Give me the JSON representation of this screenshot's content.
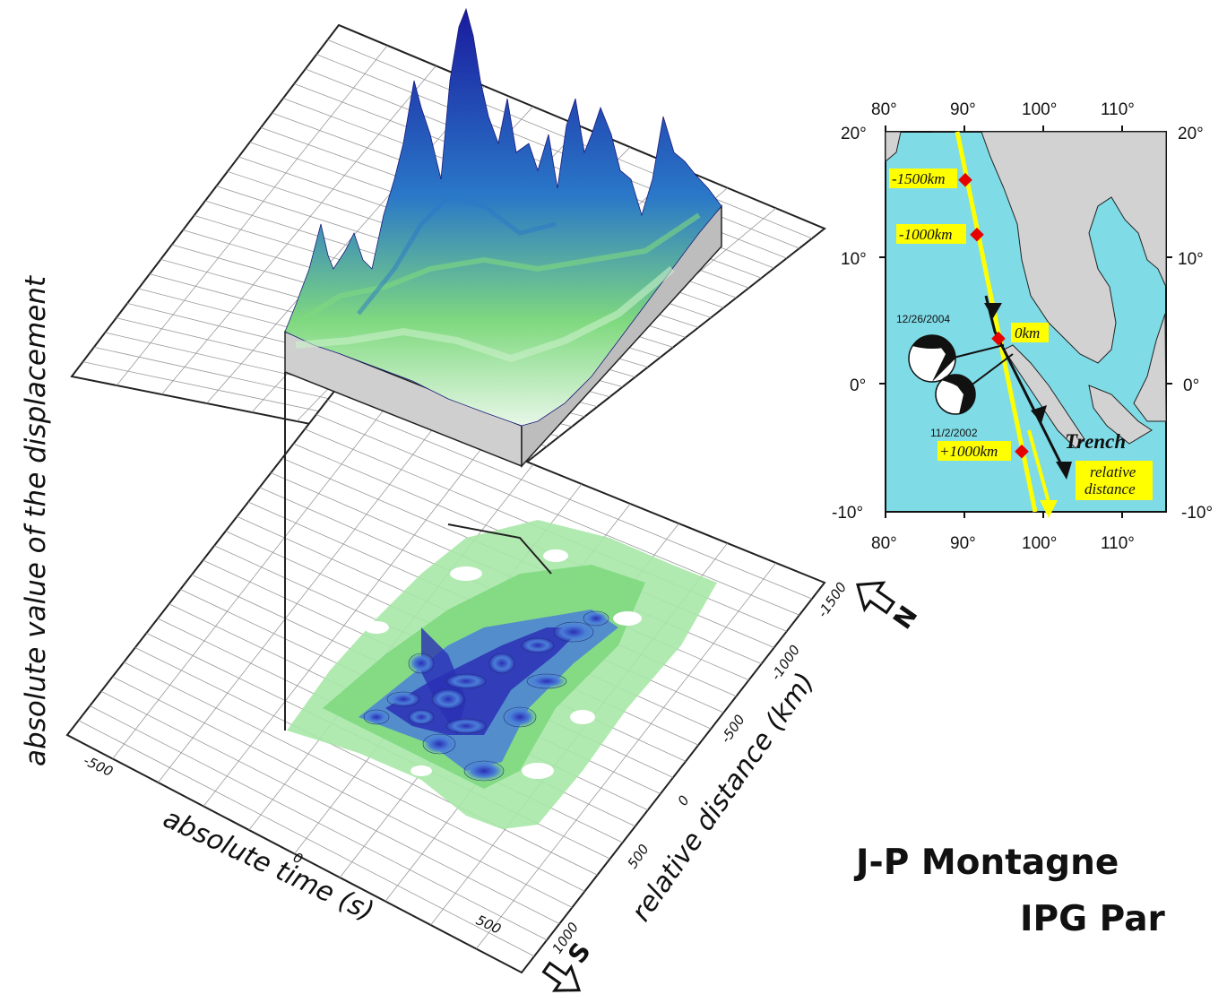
{
  "figure": {
    "ylabel": "absolute value of the displacement",
    "xlabel": "absolute time (s)",
    "distance_label": "relative distance (km)",
    "time_ticks": [
      "-500",
      "0",
      "500"
    ],
    "distance_ticks": [
      "-1500",
      "-1000",
      "-500",
      "0",
      "500",
      "1000"
    ],
    "north_arrow": "N",
    "south_arrow": "S"
  },
  "map": {
    "lon_ticks": [
      "80°",
      "90°",
      "100°",
      "110°"
    ],
    "lat_ticks_left": [
      "20°",
      "10°",
      "0°",
      "-10°"
    ],
    "lat_ticks_right": [
      "20°",
      "10°",
      "0°",
      "-10°"
    ],
    "distance_markers": [
      "-1500km",
      "-1000km",
      "0km",
      "+1000km"
    ],
    "event_dates": [
      "12/26/2004",
      "11/2/2002"
    ],
    "trench_label": "Trench",
    "relative_distance_label": [
      "relative",
      "distance"
    ],
    "colors": {
      "ocean": "#7fdbe6",
      "land": "#d2d2d2",
      "track": "#ffff00",
      "marker": "#e60000"
    }
  },
  "author": {
    "name": "J-P Montagne",
    "affiliation": "IPG Par"
  },
  "colors": {
    "deep": "#1a1a9e",
    "mid": "#2a78c8",
    "light": "#7fd97f",
    "pale": "#c9f0c9"
  }
}
